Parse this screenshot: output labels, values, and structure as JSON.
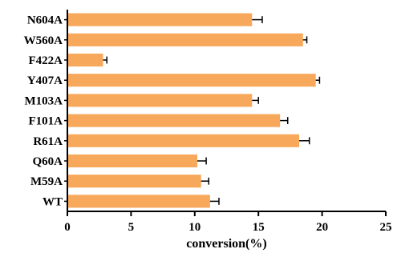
{
  "chart_data": {
    "type": "bar",
    "orientation": "horizontal",
    "categories": [
      "N604A",
      "W560A",
      "F422A",
      "Y407A",
      "M103A",
      "F101A",
      "R61A",
      "Q60A",
      "M59A",
      "WT"
    ],
    "values": [
      14.5,
      18.5,
      2.8,
      19.5,
      14.5,
      16.7,
      18.2,
      10.2,
      10.5,
      11.2
    ],
    "errors": [
      0.8,
      0.3,
      0.3,
      0.3,
      0.5,
      0.6,
      0.8,
      0.7,
      0.6,
      0.7
    ],
    "xlabel": "conversion(%)",
    "ylabel": "",
    "title": "",
    "xlim": [
      0,
      25
    ],
    "xticks": [
      "0",
      "5",
      "10",
      "15",
      "20",
      "25"
    ],
    "grid": false,
    "bar_color": "#F8A85A",
    "error_color": "#000000"
  }
}
